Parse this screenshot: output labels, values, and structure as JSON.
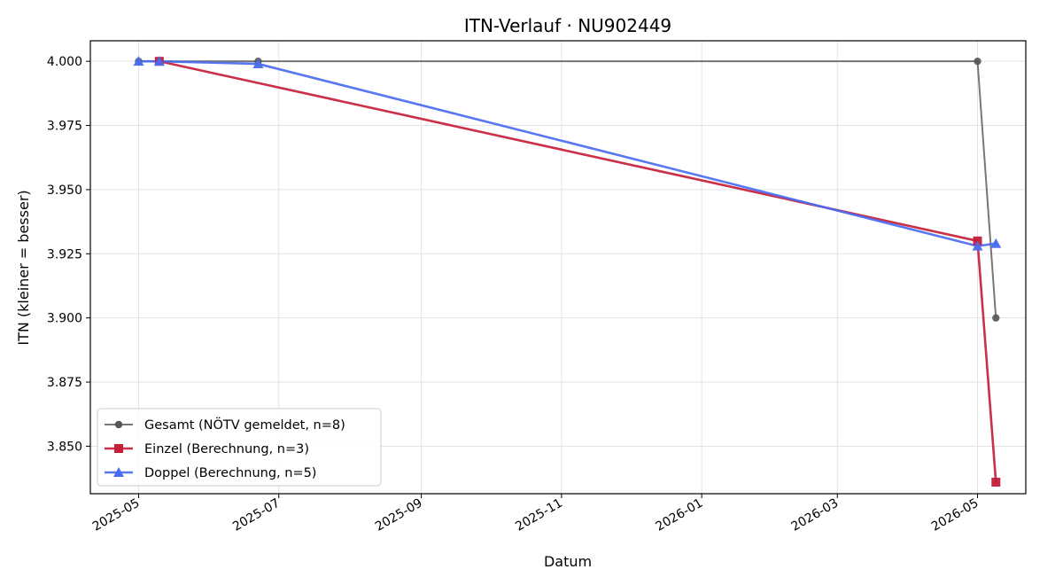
{
  "chart_data": {
    "type": "line",
    "title": "ITN-Verlauf · NU902449",
    "xlabel": "Datum",
    "ylabel": "ITN  (kleiner = besser)",
    "x_type": "date",
    "xlim": [
      "2025-04-10",
      "2026-05-22"
    ],
    "ylim": [
      3.8315,
      4.008
    ],
    "x_ticks": [
      "2025-05-01",
      "2025-07-01",
      "2025-09-01",
      "2025-11-01",
      "2026-01-01",
      "2026-03-01",
      "2026-05-01"
    ],
    "x_tick_labels": [
      "2025-05",
      "2025-07",
      "2025-09",
      "2025-11",
      "2026-01",
      "2026-03",
      "2026-05"
    ],
    "y_ticks": [
      3.85,
      3.875,
      3.9,
      3.925,
      3.95,
      3.975,
      4.0
    ],
    "y_tick_labels": [
      "3.850",
      "3.875",
      "3.900",
      "3.925",
      "3.950",
      "3.975",
      "4.000"
    ],
    "grid": true,
    "legend_position": "lower-left",
    "series": [
      {
        "name": "Gesamt (NÖTV gemeldet, n=8)",
        "color": "#555555",
        "marker": "circle",
        "points": [
          {
            "x": "2025-05-01",
            "y": 4.0
          },
          {
            "x": "2025-06-22",
            "y": 4.0
          },
          {
            "x": "2026-05-01",
            "y": 4.0
          },
          {
            "x": "2026-05-09",
            "y": 3.9
          }
        ]
      },
      {
        "name": "Einzel (Berechnung, n=3)",
        "color": "#c41e3a",
        "marker": "square",
        "points": [
          {
            "x": "2025-05-10",
            "y": 4.0
          },
          {
            "x": "2026-05-01",
            "y": 3.93
          },
          {
            "x": "2026-05-09",
            "y": 3.836
          }
        ]
      },
      {
        "name": "Doppel (Berechnung, n=5)",
        "color": "#4a6cf0",
        "marker": "triangle",
        "points": [
          {
            "x": "2025-05-01",
            "y": 4.0
          },
          {
            "x": "2025-05-10",
            "y": 4.0
          },
          {
            "x": "2025-06-22",
            "y": 3.999
          },
          {
            "x": "2026-05-01",
            "y": 3.928
          },
          {
            "x": "2026-05-09",
            "y": 3.929
          }
        ]
      }
    ]
  }
}
